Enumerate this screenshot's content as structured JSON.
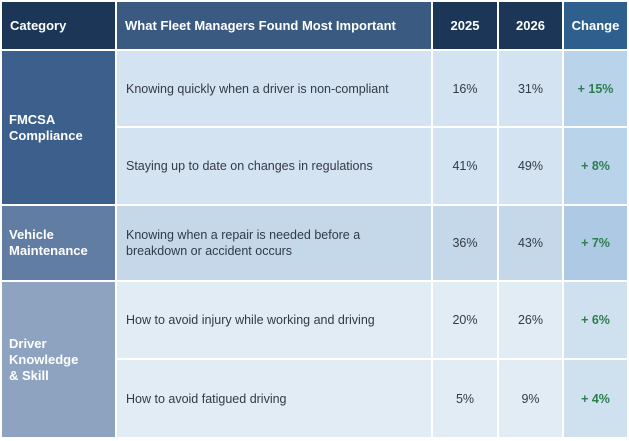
{
  "chart_data": {
    "type": "table",
    "columns": [
      "Category",
      "What Fleet Managers Found Most Important",
      "2025",
      "2026",
      "Change"
    ],
    "groups": [
      {
        "category": "FMCSA\nCompliance",
        "rows": [
          {
            "item": "Knowing quickly when a driver is non-compliant",
            "y2025": "16%",
            "y2026": "31%",
            "change": "+ 15%"
          },
          {
            "item": "Staying up to date on changes in regulations",
            "y2025": "41%",
            "y2026": "49%",
            "change": "+ 8%"
          }
        ]
      },
      {
        "category": "Vehicle\nMaintenance",
        "rows": [
          {
            "item": "Knowing when a repair is needed before a breakdown or accident occurs",
            "y2025": "36%",
            "y2026": "43%",
            "change": "+ 7%"
          }
        ]
      },
      {
        "category": "Driver\nKnowledge\n& Skill",
        "rows": [
          {
            "item": "How to avoid injury while working and driving",
            "y2025": "20%",
            "y2026": "26%",
            "change": "+ 6%"
          },
          {
            "item": "How to avoid fatigued driving",
            "y2025": "5%",
            "y2026": "9%",
            "change": "+ 4%"
          }
        ]
      }
    ]
  },
  "colors": {
    "header_dark": "#1b3657",
    "header_mid": "#3b5a82",
    "header_change": "#2f5f8c",
    "cat_fmcsa": "#3c5f8c",
    "cat_vehicle": "#617da4",
    "cat_driver": "#8ea3c0",
    "row_fmcsa": "#d3e3f1",
    "row_vehicle": "#c5d8ea",
    "row_driver": "#e2ecf5",
    "change_fmcsa": "#b8d3ea",
    "change_vehicle": "#adc9e3",
    "change_driver": "#cfe0ef",
    "change_text": "#2e7d4f"
  }
}
